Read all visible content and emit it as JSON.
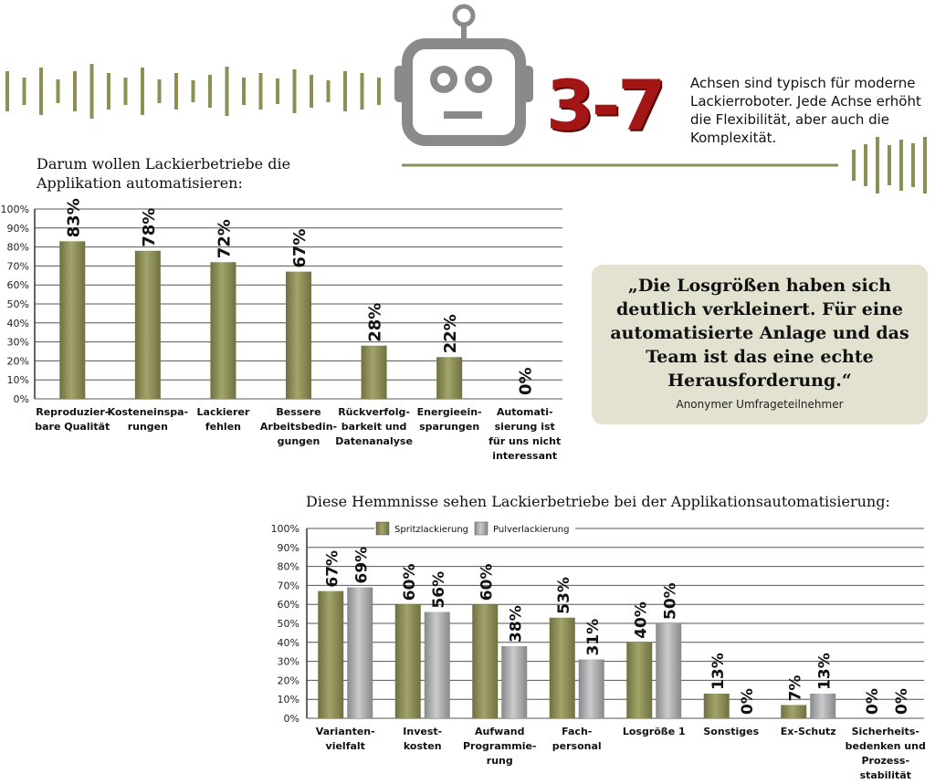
{
  "header": {
    "big_number": "3-7",
    "description": "Achsen sind typisch für moderne Lackierroboter. Jede Achse erhöht die Flexibilität, aber auch die Komplexität.",
    "icon": "robot-icon",
    "colors": {
      "accent_red": "#a31616",
      "olive": "#8e8f55",
      "gray": "#a7a9ab"
    }
  },
  "quote": {
    "text": "„Die Losgrößen haben sich deutlich verkleinert. Für eine automatisierte Anlage und das Team ist das eine echte Herausforderung.“",
    "author": "Anonymer Umfrageteilnehmer"
  },
  "chart_data": [
    {
      "type": "bar",
      "title": "Darum wollen Lackierbetriebe die Applikation automatisieren:",
      "categories": [
        [
          "Reproduzier-",
          "bare Qualität"
        ],
        [
          "Kosteneinspa-",
          "rungen"
        ],
        [
          "Lackierer",
          "fehlen"
        ],
        [
          "Bessere",
          "Arbeitsbedin-",
          "gungen"
        ],
        [
          "Rückverfolg-",
          "barkeit und",
          "Datenanalyse"
        ],
        [
          "Energieein-",
          "sparungen"
        ],
        [
          "Automati-",
          "sierung ist",
          "für uns nicht",
          "interessant"
        ]
      ],
      "values": [
        83,
        78,
        72,
        67,
        28,
        22,
        0
      ],
      "value_labels": [
        "83%",
        "78%",
        "72%",
        "67%",
        "28%",
        "22%",
        "0%"
      ],
      "ylim": [
        0,
        100
      ],
      "yticks": [
        "0%",
        "10%",
        "20%",
        "30%",
        "40%",
        "50%",
        "60%",
        "70%",
        "80%",
        "90%",
        "100%"
      ],
      "grid": true,
      "color": "#8e8f55"
    },
    {
      "type": "bar",
      "title": "Diese Hemmnisse sehen Lackierbetriebe bei der Applikationsautomatisierung:",
      "categories": [
        [
          "Varianten-",
          "vielfalt"
        ],
        [
          "Invest-",
          "kosten"
        ],
        [
          "Aufwand",
          "Programmie-",
          "rung"
        ],
        [
          "Fach-",
          "personal"
        ],
        [
          "Losgröße 1"
        ],
        [
          "Sonstiges"
        ],
        [
          "Ex-Schutz"
        ],
        [
          "Sicherheits-",
          "bedenken und",
          "Prozess-",
          "stabilität"
        ]
      ],
      "series": [
        {
          "name": "Spritzlackierung",
          "values": [
            67,
            60,
            60,
            53,
            40,
            13,
            7,
            0
          ],
          "labels": [
            "67%",
            "60%",
            "60%",
            "53%",
            "40%",
            "13%",
            "7%",
            "0%"
          ],
          "color": "#8e8f55"
        },
        {
          "name": "Pulverlackierung",
          "values": [
            69,
            56,
            38,
            31,
            50,
            0,
            13,
            0
          ],
          "labels": [
            "69%",
            "56%",
            "38%",
            "31%",
            "50%",
            "0%",
            "13%",
            "0%"
          ],
          "color": "#a7a9ab"
        }
      ],
      "ylim": [
        0,
        100
      ],
      "yticks": [
        "0%",
        "10%",
        "20%",
        "30%",
        "40%",
        "50%",
        "60%",
        "70%",
        "80%",
        "90%",
        "100%"
      ],
      "grid": true,
      "legend": "top"
    }
  ]
}
